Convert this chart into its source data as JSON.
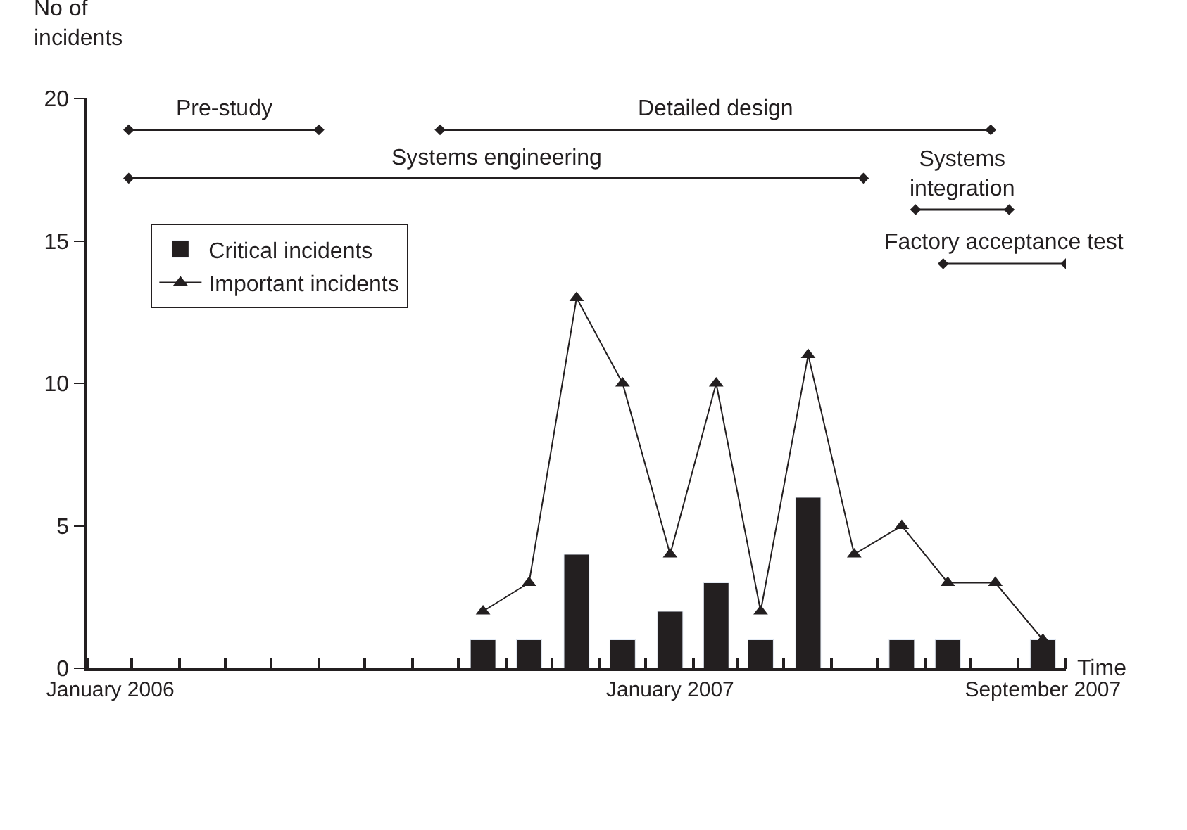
{
  "chart_data": {
    "type": "bar",
    "ylabel": "No of incidents",
    "xlabel": "Time",
    "x": [
      "2006-09-16",
      "2006-10-16",
      "2006-11-16",
      "2006-12-16",
      "2007-01-16",
      "2007-02-15",
      "2007-03-16",
      "2007-04-16",
      "2007-05-16",
      "2007-06-16",
      "2007-07-16",
      "2007-08-16",
      "2007-09-16"
    ],
    "series": [
      {
        "name": "Critical incidents",
        "color": "#231f20",
        "values": [
          1,
          1,
          4,
          1,
          2,
          3,
          1,
          6,
          null,
          1,
          1,
          null,
          1
        ]
      },
      {
        "name": "Important incidents",
        "type": "line",
        "color": "#231f20",
        "marker": "triangle",
        "line_style": "solid",
        "values": [
          2,
          3,
          13,
          10,
          4,
          10,
          2,
          11,
          4,
          5,
          3,
          3,
          1
        ]
      },
      {
        "name": "Pre-study",
        "type": "line",
        "color": "#231f20",
        "marker": "diamond",
        "line_style": "solid",
        "x": [
          "2006-01-28",
          "2006-06-01"
        ],
        "values": [
          18.9,
          18.9
        ]
      },
      {
        "name": "Detailed design",
        "type": "line",
        "color": "#231f20",
        "marker": "diamond",
        "line_style": "solid",
        "x": [
          "2006-08-19",
          "2007-08-13"
        ],
        "values": [
          18.9,
          18.9
        ]
      },
      {
        "name": "Systems engineering",
        "type": "line",
        "color": "#231f20",
        "marker": "diamond",
        "line_style": "solid",
        "x": [
          "2006-01-28",
          "2007-05-22"
        ],
        "values": [
          17.2,
          17.2
        ]
      },
      {
        "name": "Systems integration",
        "type": "line",
        "color": "#231f20",
        "marker": "diamond",
        "line_style": "solid",
        "x": [
          "2007-06-25",
          "2007-08-25"
        ],
        "values": [
          16.1,
          16.1
        ]
      },
      {
        "name": "Factory acceptance test",
        "type": "line",
        "color": "#231f20",
        "marker": "diamond",
        "line_style": "solid",
        "x": [
          "2007-07-13",
          "2007-10-01"
        ],
        "values": [
          14.2,
          14.2
        ]
      }
    ],
    "xlim": [
      "2006-01-01",
      "2007-10-01"
    ],
    "xticks": [
      {
        "value": "2006-01-16",
        "label": "January 2006"
      },
      {
        "value": "2007-01-16",
        "label": "January 2007"
      },
      {
        "value": "2007-09-16",
        "label": "September 2007"
      }
    ],
    "ylim": [
      0,
      20
    ],
    "yticks": [
      0,
      5,
      10,
      15,
      20
    ],
    "grid": false,
    "legend": "top left"
  }
}
